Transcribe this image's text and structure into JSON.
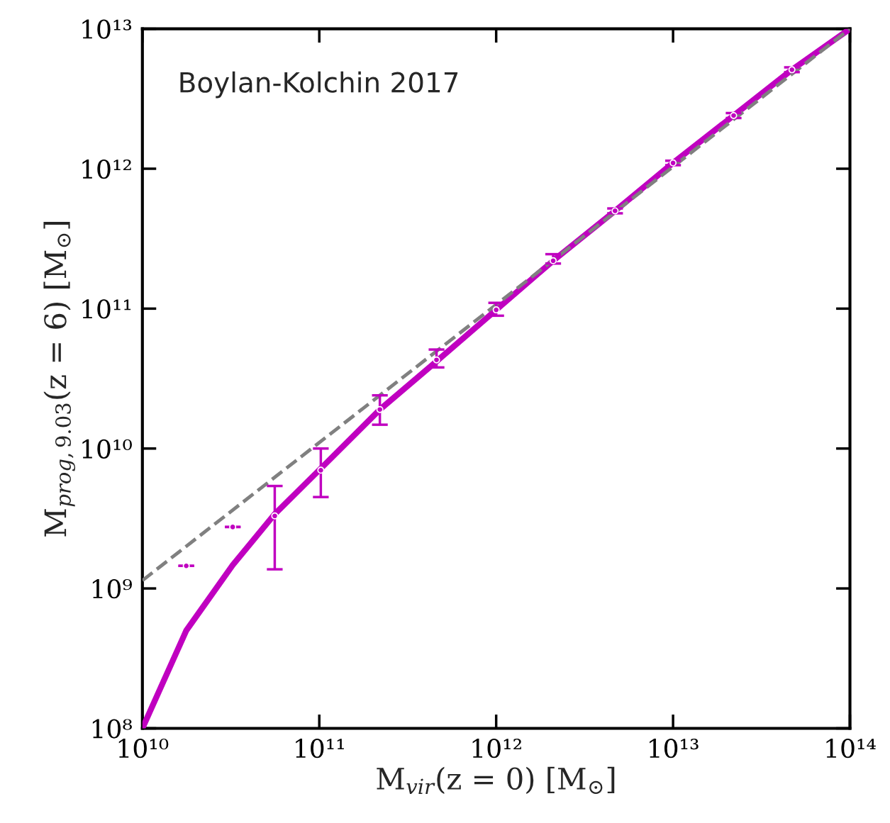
{
  "chart_data": {
    "type": "line",
    "xlabel": "M$_{vir}$(z = 0) [M$_{⊙}$]",
    "ylabel": "M$_{prog,9.03}$(z = 6) [M$_{⊙}$]",
    "log": "xy",
    "grid": false,
    "legend": false,
    "annotations": [
      "Boylan-Kolchin 2017"
    ],
    "xlim": [
      10000000000.0,
      100000000000000.0
    ],
    "ylim": [
      100000000.0,
      10000000000000.0
    ],
    "xticks": [
      {
        "value": 10000000000.0,
        "label": "10¹⁰"
      },
      {
        "value": 100000000000.0,
        "label": "10¹¹"
      },
      {
        "value": 1000000000000.0,
        "label": "10¹²"
      },
      {
        "value": 10000000000000.0,
        "label": "10¹³"
      },
      {
        "value": 100000000000000.0,
        "label": "10¹⁴"
      }
    ],
    "yticks": [
      {
        "value": 100000000.0,
        "label": "10⁸"
      },
      {
        "value": 1000000000.0,
        "label": "10⁹"
      },
      {
        "value": 10000000000.0,
        "label": "10¹⁰"
      },
      {
        "value": 100000000000.0,
        "label": "10¹¹"
      },
      {
        "value": 1000000000000.0,
        "label": "10¹²"
      },
      {
        "value": 10000000000000.0,
        "label": "10¹³"
      }
    ],
    "series": [
      {
        "color": "#c000c0",
        "line_style": "solid",
        "x": [
          10000000000.0,
          17700000000.0,
          32400000000.0,
          56000000000.0,
          102000000000.0,
          220000000000.0,
          460000000000.0,
          1000000000000.0,
          2100000000000.0,
          4700000000000.0,
          10000000000000.0,
          22000000000000.0,
          47000000000000.0,
          100000000000000.0
        ],
        "values": [
          100000000.0,
          500000000.0,
          1470000000.0,
          3400000000.0,
          7200000000.0,
          19000000000.0,
          42000000000.0,
          98000000000.0,
          220000000000.0,
          500000000000.0,
          1100000000000.0,
          2400000000000.0,
          5100000000000.0,
          10000000000000.0
        ]
      },
      {
        "color": "#808080",
        "line_style": "dashed",
        "x": [
          10000000000.0,
          100000000000000.0
        ],
        "values": [
          1140000000.0,
          10000000000000.0
        ]
      },
      {
        "type": "scatter",
        "color": "#c000c0",
        "marker": "circle",
        "x": [
          17700000000.0,
          32400000000.0,
          56000000000.0,
          102000000000.0,
          220000000000.0,
          460000000000.0,
          1000000000000.0,
          2100000000000.0,
          4700000000000.0,
          10000000000000.0,
          22000000000000.0,
          47000000000000.0
        ],
        "values": [
          1450000000.0,
          2750000000.0,
          3300000000.0,
          7000000000.0,
          19000000000.0,
          43000000000.0,
          98000000000.0,
          220000000000.0,
          500000000000.0,
          1100000000000.0,
          2400000000000.0,
          5100000000000.0
        ],
        "errors": [
          [
            1450000000.0,
            1450000000.0
          ],
          [
            2750000000.0,
            2750000000.0
          ],
          [
            1370000000.0,
            5400000000.0
          ],
          [
            4500000000.0,
            10000000000.0
          ],
          [
            14800000000.0,
            24000000000.0
          ],
          [
            38000000000.0,
            51000000000.0
          ],
          [
            89000000000.0,
            110000000000.0
          ],
          [
            210000000000.0,
            245000000000.0
          ],
          [
            480000000000.0,
            520000000000.0
          ],
          [
            1060000000000.0,
            1140000000000.0
          ],
          [
            2300000000000.0,
            2500000000000.0
          ],
          [
            4900000000000.0,
            5300000000000.0
          ]
        ]
      }
    ]
  }
}
